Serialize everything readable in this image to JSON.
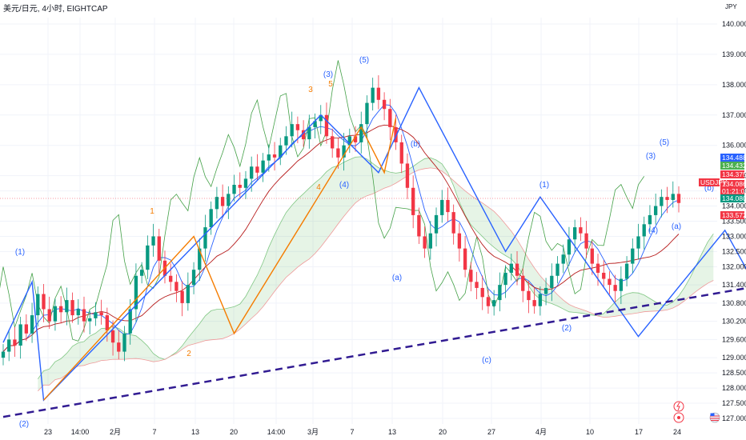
{
  "header": {
    "title": "美元/日元, 4小时, EIGHTCAP",
    "currency": "JPY"
  },
  "chart_data": {
    "type": "candlestick",
    "symbol": "USDJPY",
    "title": "美元/日元, 4小时, EIGHTCAP",
    "ylabel": "JPY",
    "ylim": [
      126.9,
      140.45
    ],
    "y_ticks": [
      127.0,
      127.5,
      128.0,
      128.5,
      129.0,
      129.6,
      130.2,
      130.8,
      131.4,
      132.0,
      132.5,
      133.0,
      133.5,
      134.0,
      134.5,
      135.0,
      136.0,
      137.0,
      138.0,
      139.0,
      140.0
    ],
    "x_ticks": [
      "23",
      "14:00",
      "2月",
      "7",
      "13",
      "20",
      "14:00",
      "3月",
      "7",
      "13",
      "20",
      "27",
      "4月",
      "10",
      "17",
      "24"
    ],
    "price_labels": [
      {
        "value": "134.488",
        "color": "#2962ff"
      },
      {
        "value": "134.432",
        "color": "#4caf50"
      },
      {
        "value": "134.375",
        "color": "#f23645"
      },
      {
        "value": "134.086",
        "color": "#f23645"
      },
      {
        "value": "01:21:05",
        "color": "#f23645"
      },
      {
        "value": "134.080",
        "color": "#089981"
      },
      {
        "value": "133.572",
        "color": "#f23645"
      }
    ],
    "current_symbol_label": "USDJPY",
    "wave_labels_blue": [
      "(1)",
      "(2)",
      "(3)",
      "(4)",
      "(5)",
      "(a)",
      "(b)",
      "(c)",
      "(1)",
      "(2)",
      "(3)",
      "(4)",
      "(5)",
      "(a)",
      "(b)"
    ],
    "wave_labels_orange": [
      "1",
      "2",
      "3",
      "4",
      "5"
    ],
    "elliott_path_price": [
      [
        0,
        129.5
      ],
      [
        5,
        131.5
      ],
      [
        7,
        127.6
      ],
      [
        55,
        137.0
      ],
      [
        65,
        135.1
      ],
      [
        72,
        137.9
      ],
      [
        87,
        132.5
      ],
      [
        93,
        134.3
      ],
      [
        110,
        129.7
      ],
      [
        125,
        133.2
      ],
      [
        132,
        130.8
      ],
      [
        145,
        134.5
      ]
    ],
    "orange_path_price": [
      [
        7,
        127.6
      ],
      [
        33,
        133.0
      ],
      [
        40,
        129.8
      ],
      [
        62,
        136.6
      ],
      [
        66,
        135.1
      ],
      [
        68,
        136.9
      ]
    ],
    "trendline_price": [
      [
        0,
        127.05
      ],
      [
        135,
        131.5
      ]
    ],
    "series": [
      {
        "name": "price",
        "values": [
          129.2,
          129.6,
          129.4,
          130.1,
          129.8,
          130.4,
          131.1,
          130.6,
          130.2,
          130.7,
          130.5,
          130.9,
          130.4,
          130.6,
          130.2,
          130.3,
          130.5,
          130.4,
          129.9,
          129.5,
          129.2,
          129.8,
          130.6,
          131.7,
          131.9,
          132.7,
          133.0,
          132.2,
          131.7,
          131.5,
          131.2,
          130.8,
          131.4,
          131.9,
          132.6,
          133.3,
          133.9,
          134.3,
          134.0,
          134.4,
          134.7,
          134.6,
          134.9,
          135.3,
          135.1,
          135.5,
          135.7,
          135.6,
          136.0,
          136.3,
          136.7,
          136.5,
          136.2,
          136.6,
          136.8,
          137.0,
          136.3,
          135.9,
          135.6,
          136.0,
          136.3,
          136.1,
          136.7,
          137.4,
          137.9,
          137.5,
          137.2,
          136.6,
          136.1,
          135.4,
          134.6,
          133.7,
          133.0,
          132.6,
          133.1,
          133.7,
          134.2,
          133.8,
          133.1,
          132.6,
          131.9,
          131.5,
          131.3,
          131.0,
          130.7,
          130.9,
          131.4,
          131.8,
          132.1,
          131.7,
          131.2,
          130.9,
          130.7,
          131.1,
          131.3,
          131.7,
          132.1,
          132.4,
          132.9,
          133.3,
          133.1,
          132.6,
          132.1,
          131.8,
          131.6,
          131.4,
          131.2,
          131.6,
          132.1,
          132.6,
          133.0,
          133.4,
          133.7,
          134.0,
          134.3,
          134.2,
          134.4,
          134.1
        ]
      }
    ],
    "grid": true
  }
}
